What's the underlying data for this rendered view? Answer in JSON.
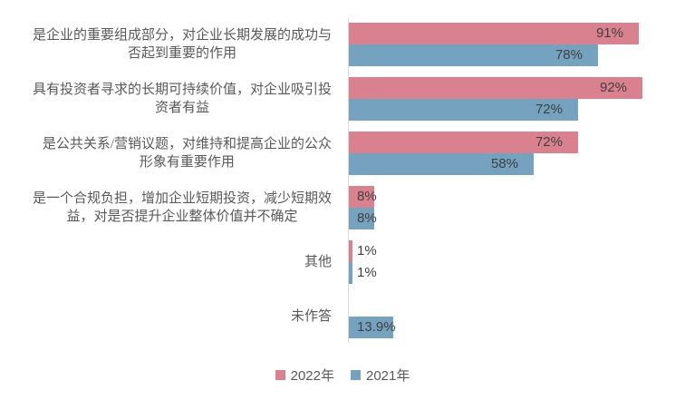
{
  "chart_data": {
    "type": "bar",
    "orientation": "horizontal",
    "title": "",
    "xlabel": "",
    "ylabel": "",
    "xlim": [
      0,
      100
    ],
    "unit": "%",
    "grid": false,
    "legend_position": "bottom-center",
    "categories": [
      "是企业的重要组成部分，对企业长期发展的成功与\n否起到重要的作用",
      "具有投资者寻求的长期可持续价值，对企业吸引投\n资者有益",
      "是公共关系/营销议题，对维持和提高企业的公众\n形象有重要作用",
      "是一个合规负担，增加企业短期投资，减少短期效\n益，对是否提升企业整体价值并不确定",
      "其他",
      "未作答"
    ],
    "series": [
      {
        "name": "2022年",
        "color": "#D9818F",
        "values": [
          91,
          92,
          72,
          8,
          1,
          null
        ],
        "labels": [
          "91%",
          "92%",
          "72%",
          "8%",
          "1%",
          ""
        ]
      },
      {
        "name": "2021年",
        "color": "#74A2BF",
        "values": [
          78,
          72,
          58,
          8,
          1,
          13.9
        ],
        "labels": [
          "78%",
          "72%",
          "58%",
          "8%",
          "1%",
          "13.9%"
        ]
      }
    ]
  },
  "colors": {
    "background": "#FFFFFF",
    "axis_line": "#D9D9D9",
    "value_label": "#404040",
    "category_label": "#595959"
  },
  "legend": {
    "items": [
      {
        "label": "2022年",
        "color": "#D9818F"
      },
      {
        "label": "2021年",
        "color": "#74A2BF"
      }
    ]
  }
}
